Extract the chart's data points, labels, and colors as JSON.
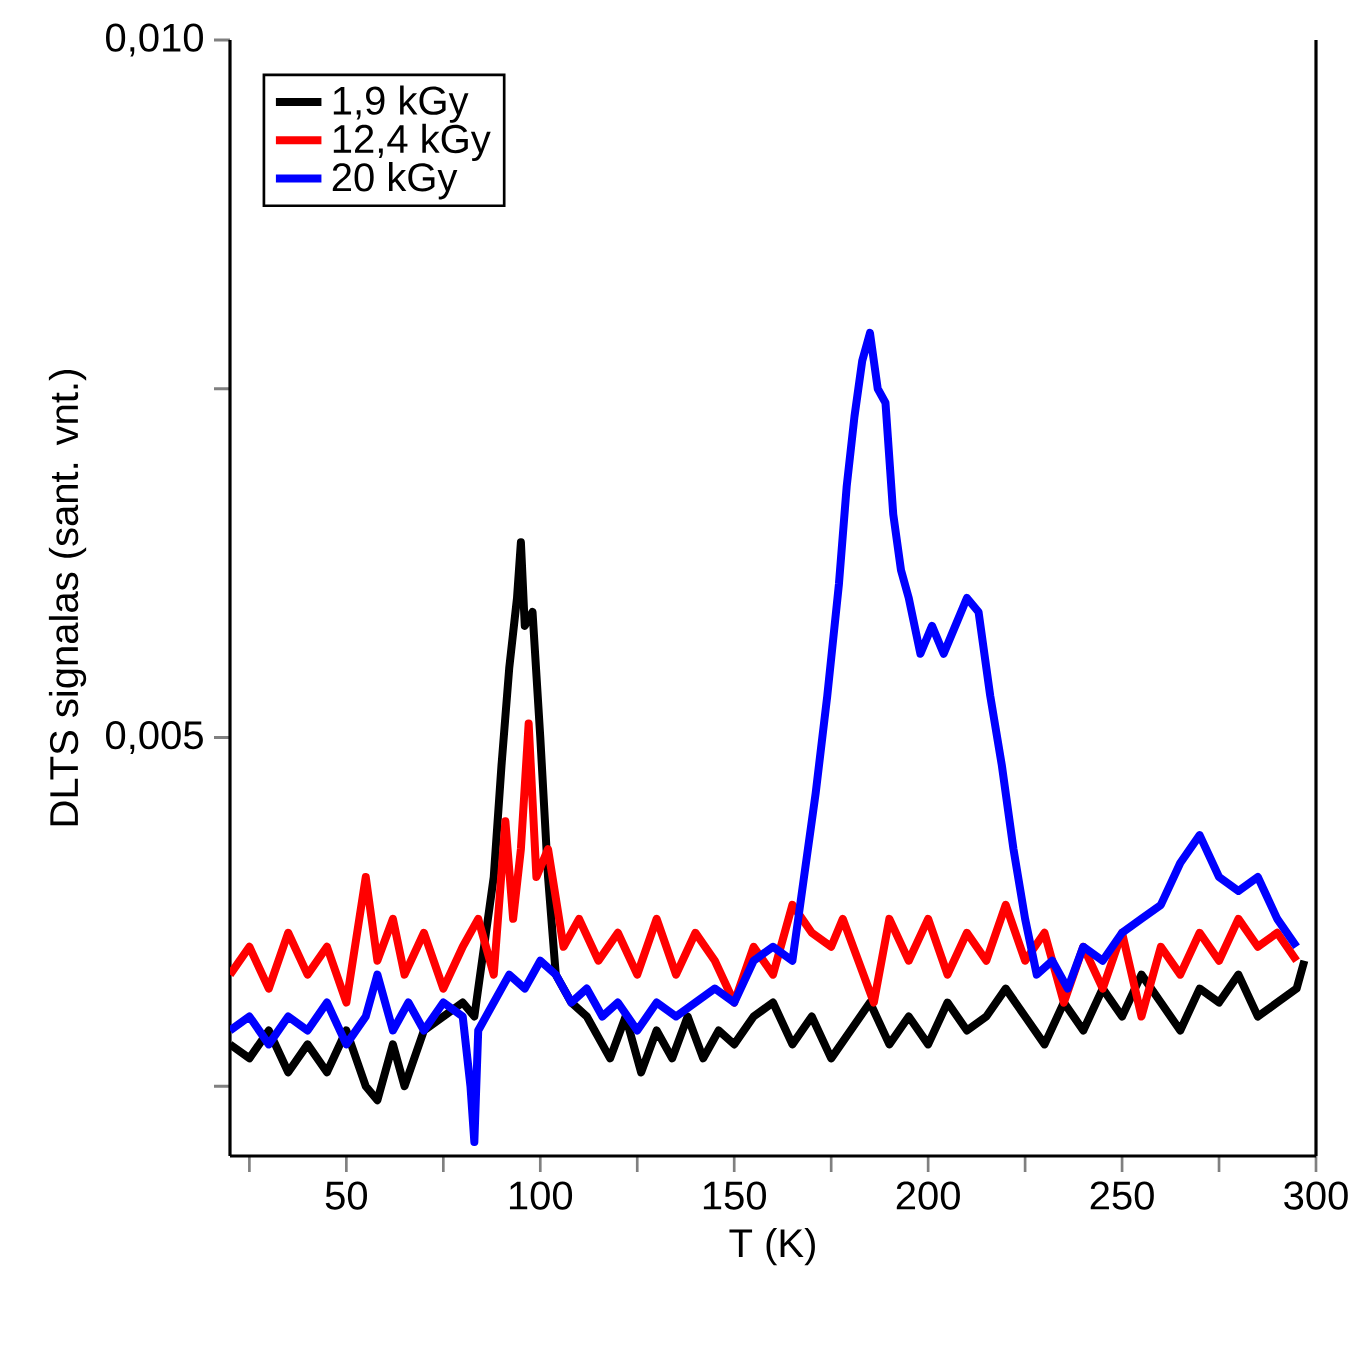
{
  "chart_data": {
    "type": "line",
    "xlabel": "T (K)",
    "ylabel": "DLTS signalas (sant. vnt.)",
    "xlim": [
      20,
      300
    ],
    "ylim": [
      0.002,
      0.01
    ],
    "xticks": [
      {
        "value": 25,
        "label": null
      },
      50,
      {
        "value": 75,
        "label": null
      },
      100,
      {
        "value": 125,
        "label": null
      },
      150,
      {
        "value": 175,
        "label": null
      },
      200,
      {
        "value": 225,
        "label": null
      },
      250,
      {
        "value": 275,
        "label": null
      },
      300
    ],
    "yticks": [
      {
        "value": 0.0025,
        "label": null
      },
      {
        "value": 0.005,
        "label": "0,005"
      },
      {
        "value": 0.0075,
        "label": null
      },
      {
        "value": 0.01,
        "label": "0,010"
      }
    ],
    "grid": false,
    "legend": "top left",
    "marker": "none",
    "line_style": "solid",
    "series": [
      {
        "name": "1,9 kGy",
        "color": "#000000",
        "x": [
          20,
          25,
          30,
          35,
          40,
          45,
          50,
          55,
          58,
          62,
          65,
          70,
          75,
          80,
          83,
          86,
          88,
          90,
          92,
          94,
          95,
          96,
          98,
          100,
          102,
          104,
          108,
          112,
          118,
          122,
          126,
          130,
          134,
          138,
          142,
          146,
          150,
          155,
          160,
          165,
          170,
          175,
          180,
          185,
          190,
          195,
          200,
          205,
          210,
          215,
          220,
          225,
          230,
          235,
          240,
          245,
          250,
          255,
          260,
          265,
          270,
          275,
          280,
          285,
          290,
          295,
          297
        ],
        "values": [
          0.0028,
          0.0027,
          0.0029,
          0.0026,
          0.0028,
          0.0026,
          0.0029,
          0.0025,
          0.0024,
          0.0028,
          0.0025,
          0.0029,
          0.003,
          0.0031,
          0.003,
          0.0036,
          0.004,
          0.0048,
          0.0055,
          0.006,
          0.0064,
          0.0058,
          0.0059,
          0.005,
          0.004,
          0.0033,
          0.0031,
          0.003,
          0.0027,
          0.003,
          0.0026,
          0.0029,
          0.0027,
          0.003,
          0.0027,
          0.0029,
          0.0028,
          0.003,
          0.0031,
          0.0028,
          0.003,
          0.0027,
          0.0029,
          0.0031,
          0.0028,
          0.003,
          0.0028,
          0.0031,
          0.0029,
          0.003,
          0.0032,
          0.003,
          0.0028,
          0.0031,
          0.0029,
          0.0032,
          0.003,
          0.0033,
          0.0031,
          0.0029,
          0.0032,
          0.0031,
          0.0033,
          0.003,
          0.0031,
          0.0032,
          0.0034
        ]
      },
      {
        "name": "12,4 kGy",
        "color": "#ff0000",
        "x": [
          20,
          25,
          30,
          35,
          40,
          45,
          50,
          55,
          58,
          62,
          65,
          70,
          75,
          80,
          84,
          88,
          91,
          93,
          95,
          97,
          99,
          102,
          106,
          110,
          115,
          120,
          125,
          130,
          135,
          140,
          145,
          150,
          155,
          160,
          165,
          170,
          175,
          178,
          182,
          186,
          190,
          195,
          200,
          205,
          210,
          215,
          220,
          225,
          230,
          235,
          240,
          245,
          250,
          255,
          260,
          265,
          270,
          275,
          280,
          285,
          290,
          295
        ],
        "values": [
          0.0033,
          0.0035,
          0.0032,
          0.0036,
          0.0033,
          0.0035,
          0.0031,
          0.004,
          0.0034,
          0.0037,
          0.0033,
          0.0036,
          0.0032,
          0.0035,
          0.0037,
          0.0033,
          0.0044,
          0.0037,
          0.0042,
          0.0051,
          0.004,
          0.0042,
          0.0035,
          0.0037,
          0.0034,
          0.0036,
          0.0033,
          0.0037,
          0.0033,
          0.0036,
          0.0034,
          0.0031,
          0.0035,
          0.0033,
          0.0038,
          0.0036,
          0.0035,
          0.0037,
          0.0034,
          0.0031,
          0.0037,
          0.0034,
          0.0037,
          0.0033,
          0.0036,
          0.0034,
          0.0038,
          0.0034,
          0.0036,
          0.0031,
          0.0035,
          0.0032,
          0.0036,
          0.003,
          0.0035,
          0.0033,
          0.0036,
          0.0034,
          0.0037,
          0.0035,
          0.0036,
          0.0034
        ]
      },
      {
        "name": "20 kGy",
        "color": "#0000ff",
        "x": [
          20,
          25,
          30,
          35,
          40,
          45,
          50,
          55,
          58,
          62,
          66,
          70,
          75,
          80,
          82,
          83,
          84,
          88,
          92,
          96,
          100,
          104,
          108,
          112,
          116,
          120,
          125,
          130,
          135,
          140,
          145,
          150,
          155,
          160,
          165,
          168,
          171,
          174,
          177,
          179,
          181,
          183,
          185,
          187,
          189,
          191,
          193,
          195,
          198,
          201,
          204,
          207,
          210,
          213,
          216,
          219,
          222,
          225,
          228,
          232,
          236,
          240,
          245,
          250,
          255,
          260,
          265,
          270,
          275,
          280,
          285,
          290,
          295
        ],
        "values": [
          0.0029,
          0.003,
          0.0028,
          0.003,
          0.0029,
          0.0031,
          0.0028,
          0.003,
          0.0033,
          0.0029,
          0.0031,
          0.0029,
          0.0031,
          0.003,
          0.0025,
          0.0021,
          0.0029,
          0.0031,
          0.0033,
          0.0032,
          0.0034,
          0.0033,
          0.0031,
          0.0032,
          0.003,
          0.0031,
          0.0029,
          0.0031,
          0.003,
          0.0031,
          0.0032,
          0.0031,
          0.0034,
          0.0035,
          0.0034,
          0.004,
          0.0046,
          0.0053,
          0.0061,
          0.0068,
          0.0073,
          0.0077,
          0.0079,
          0.0075,
          0.0074,
          0.0066,
          0.0062,
          0.006,
          0.0056,
          0.0058,
          0.0056,
          0.0058,
          0.006,
          0.0059,
          0.0053,
          0.0048,
          0.0042,
          0.0037,
          0.0033,
          0.0034,
          0.0032,
          0.0035,
          0.0034,
          0.0036,
          0.0037,
          0.0038,
          0.0041,
          0.0043,
          0.004,
          0.0039,
          0.004,
          0.0037,
          0.0035
        ]
      }
    ]
  }
}
